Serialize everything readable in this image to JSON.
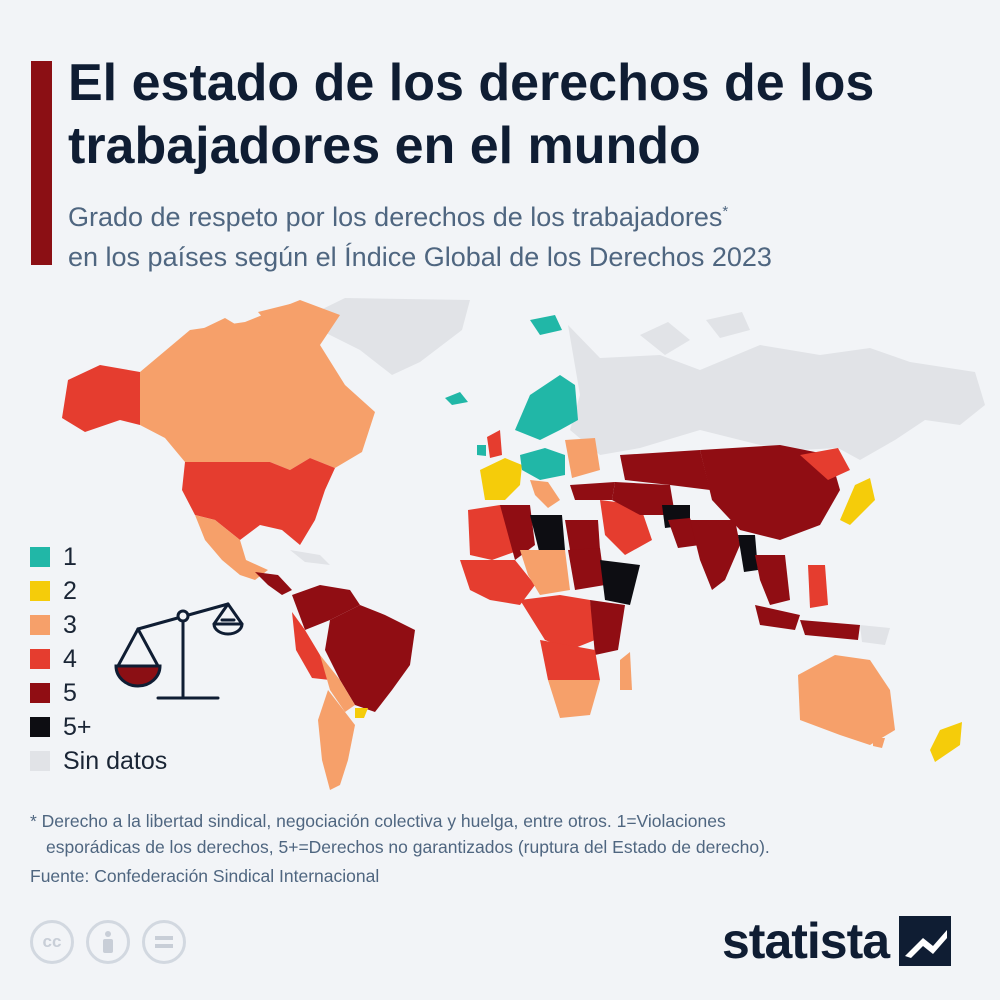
{
  "title": "El estado de los derechos de los trabajadores en el mundo",
  "subtitle": "Grado de respeto por los derechos de los trabajadores",
  "subtitle_mark": "*",
  "subtitle_line2": "en los países según el Índice Global de los Derechos 2023",
  "legend": [
    {
      "label": "1",
      "color": "#21b7a7"
    },
    {
      "label": "2",
      "color": "#f5cc0a"
    },
    {
      "label": "3",
      "color": "#f6a06a"
    },
    {
      "label": "4",
      "color": "#e53d2f"
    },
    {
      "label": "5",
      "color": "#900d13"
    },
    {
      "label": "5+",
      "color": "#0d0d12"
    },
    {
      "label": "Sin datos",
      "color": "#e1e3e7"
    }
  ],
  "footnote_line1": "* Derecho a la libertad sindical, negociación colectiva y huelga, entre otros. 1=Violaciones",
  "footnote_line2": "esporádicas de los derechos, 5+=Derechos no garantizados (ruptura del Estado de derecho).",
  "source": "Fuente: Confederación Sindical Internacional",
  "brand": "statista",
  "license_icons": [
    "cc-icon",
    "attribution-icon",
    "no-derivatives-icon"
  ]
}
